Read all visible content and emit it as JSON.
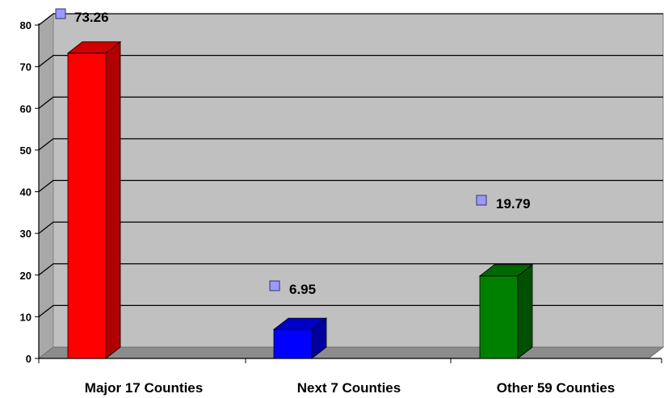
{
  "chart_data": {
    "type": "bar",
    "categories": [
      "Major 17 Counties",
      "Next 7 Counties",
      "Other 59 Counties"
    ],
    "values": [
      73.26,
      6.95,
      19.79
    ],
    "data_labels": [
      "73.26",
      "6.95",
      "19.79"
    ],
    "colors": [
      "#ff0000",
      "#0000ff",
      "#008000"
    ],
    "side_colors": [
      "#b00000",
      "#0000a0",
      "#005000"
    ],
    "top_colors": [
      "#d00000",
      "#0000c8",
      "#006800"
    ],
    "ylim": [
      0,
      80
    ],
    "yticks": [
      0,
      10,
      20,
      30,
      40,
      50,
      60,
      70,
      80
    ],
    "ytick_labels": [
      "0",
      "10",
      "20",
      "30",
      "40",
      "50",
      "60",
      "70",
      "80"
    ],
    "grid": true,
    "three_d": true,
    "background_color": "#c0c0c0",
    "marker_color": "#9999ff",
    "title": "",
    "xlabel": "",
    "ylabel": ""
  }
}
